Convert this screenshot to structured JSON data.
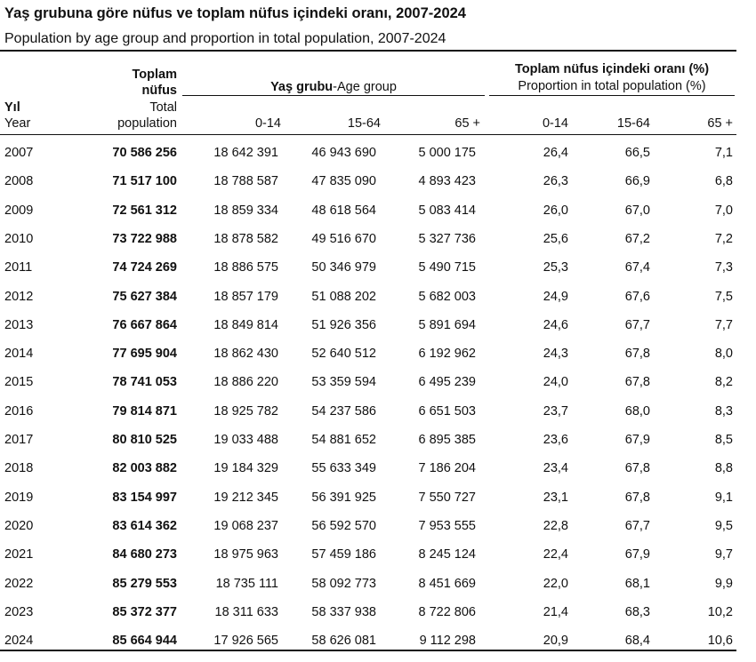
{
  "title": "Yaş grubuna göre nüfus ve toplam nüfus içindeki oranı, 2007-2024",
  "subtitle": "Population by age group and proportion in total population, 2007-2024",
  "headers": {
    "year_tr": "Yıl",
    "year_en": "Year",
    "total_tr_line1": "Toplam",
    "total_tr_line2": "nüfus",
    "total_en_line1": "Total",
    "total_en_line2": "population",
    "age_group_tr": "Yaş grubu",
    "age_group_en": "-Age group",
    "proportion_tr": "Toplam nüfus içindeki oranı (%)",
    "proportion_en": "Proportion in total population (%)",
    "col_0_14": "0-14",
    "col_15_64": "15-64",
    "col_65": "65 +",
    "col_p_0_14": "0-14",
    "col_p_15_64": "15-64",
    "col_p_65": "65 +"
  },
  "rows": [
    {
      "year": "2007",
      "total": "70 586 256",
      "a0_14": "18 642 391",
      "a15_64": "46 943 690",
      "a65": "5 000 175",
      "p0_14": "26,4",
      "p15_64": "66,5",
      "p65": "7,1"
    },
    {
      "year": "2008",
      "total": "71 517 100",
      "a0_14": "18 788 587",
      "a15_64": "47 835 090",
      "a65": "4 893 423",
      "p0_14": "26,3",
      "p15_64": "66,9",
      "p65": "6,8"
    },
    {
      "year": "2009",
      "total": "72 561 312",
      "a0_14": "18 859 334",
      "a15_64": "48 618 564",
      "a65": "5 083 414",
      "p0_14": "26,0",
      "p15_64": "67,0",
      "p65": "7,0"
    },
    {
      "year": "2010",
      "total": "73 722 988",
      "a0_14": "18 878 582",
      "a15_64": "49 516 670",
      "a65": "5 327 736",
      "p0_14": "25,6",
      "p15_64": "67,2",
      "p65": "7,2"
    },
    {
      "year": "2011",
      "total": "74 724 269",
      "a0_14": "18 886 575",
      "a15_64": "50 346 979",
      "a65": "5 490 715",
      "p0_14": "25,3",
      "p15_64": "67,4",
      "p65": "7,3"
    },
    {
      "year": "2012",
      "total": "75 627 384",
      "a0_14": "18 857 179",
      "a15_64": "51 088 202",
      "a65": "5 682 003",
      "p0_14": "24,9",
      "p15_64": "67,6",
      "p65": "7,5"
    },
    {
      "year": "2013",
      "total": "76 667 864",
      "a0_14": "18 849 814",
      "a15_64": "51 926 356",
      "a65": "5 891 694",
      "p0_14": "24,6",
      "p15_64": "67,7",
      "p65": "7,7"
    },
    {
      "year": "2014",
      "total": "77 695 904",
      "a0_14": "18 862 430",
      "a15_64": "52 640 512",
      "a65": "6 192 962",
      "p0_14": "24,3",
      "p15_64": "67,8",
      "p65": "8,0"
    },
    {
      "year": "2015",
      "total": "78 741 053",
      "a0_14": "18 886 220",
      "a15_64": "53 359 594",
      "a65": "6 495 239",
      "p0_14": "24,0",
      "p15_64": "67,8",
      "p65": "8,2"
    },
    {
      "year": "2016",
      "total": "79 814 871",
      "a0_14": "18 925 782",
      "a15_64": "54 237 586",
      "a65": "6 651 503",
      "p0_14": "23,7",
      "p15_64": "68,0",
      "p65": "8,3"
    },
    {
      "year": "2017",
      "total": "80 810 525",
      "a0_14": "19 033 488",
      "a15_64": "54 881 652",
      "a65": "6 895 385",
      "p0_14": "23,6",
      "p15_64": "67,9",
      "p65": "8,5"
    },
    {
      "year": "2018",
      "total": "82 003 882",
      "a0_14": "19 184 329",
      "a15_64": "55 633 349",
      "a65": "7 186 204",
      "p0_14": "23,4",
      "p15_64": "67,8",
      "p65": "8,8"
    },
    {
      "year": "2019",
      "total": "83 154 997",
      "a0_14": "19 212 345",
      "a15_64": "56 391 925",
      "a65": "7 550 727",
      "p0_14": "23,1",
      "p15_64": "67,8",
      "p65": "9,1"
    },
    {
      "year": "2020",
      "total": "83 614 362",
      "a0_14": "19 068 237",
      "a15_64": "56 592 570",
      "a65": "7 953 555",
      "p0_14": "22,8",
      "p15_64": "67,7",
      "p65": "9,5"
    },
    {
      "year": "2021",
      "total": "84 680 273",
      "a0_14": "18 975 963",
      "a15_64": "57 459 186",
      "a65": "8 245 124",
      "p0_14": "22,4",
      "p15_64": "67,9",
      "p65": "9,7"
    },
    {
      "year": "2022",
      "total": "85 279 553",
      "a0_14": "18 735 111",
      "a15_64": "58 092 773",
      "a65": "8 451 669",
      "p0_14": "22,0",
      "p15_64": "68,1",
      "p65": "9,9"
    },
    {
      "year": "2023",
      "total": "85 372 377",
      "a0_14": "18 311 633",
      "a15_64": "58 337 938",
      "a65": "8 722 806",
      "p0_14": "21,4",
      "p15_64": "68,3",
      "p65": "10,2"
    },
    {
      "year": "2024",
      "total": "85 664 944",
      "a0_14": "17 926 565",
      "a15_64": "58 626 081",
      "a65": "9 112 298",
      "p0_14": "20,9",
      "p15_64": "68,4",
      "p65": "10,6"
    }
  ]
}
